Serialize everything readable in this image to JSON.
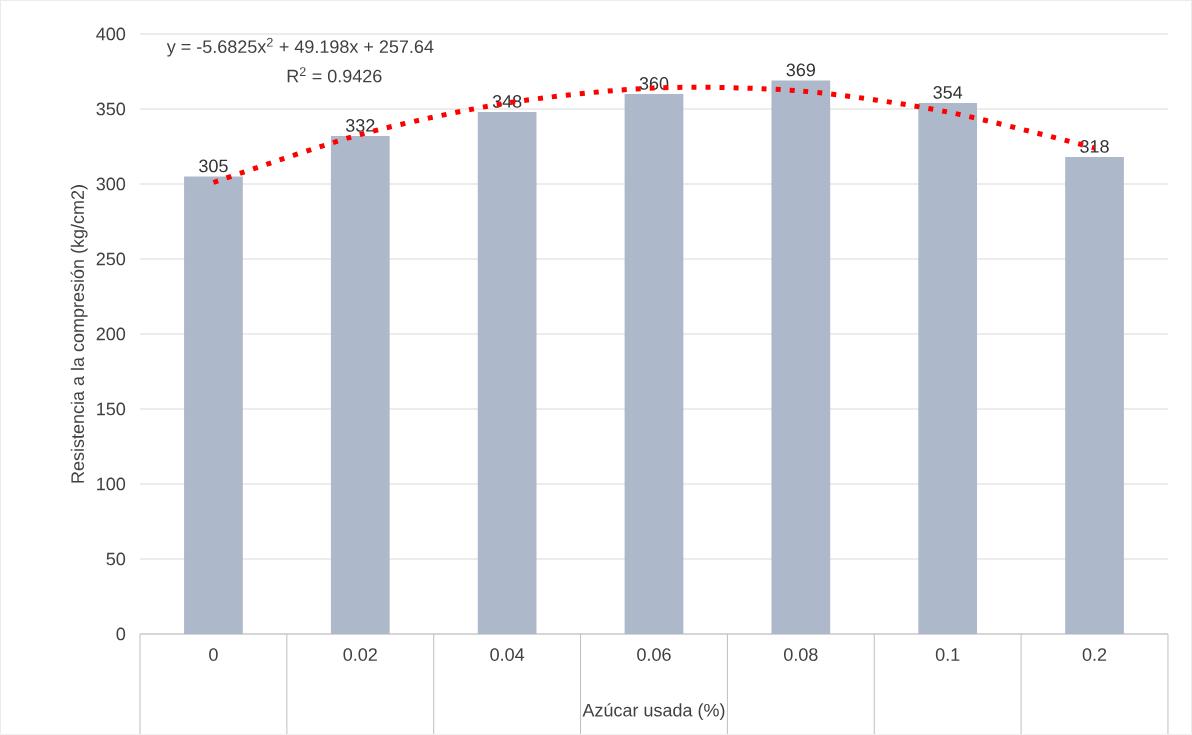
{
  "chart_data": {
    "type": "bar",
    "xlabel": "Azúcar usada (%)",
    "ylabel": "Resistencia a la compresión (kg/cm2)",
    "categories": [
      "0",
      "0.02",
      "0.04",
      "0.06",
      "0.08",
      "0.1",
      "0.2"
    ],
    "series": [
      {
        "color": "#adb9ca",
        "values": [
          305,
          332,
          348,
          360,
          369,
          354,
          318
        ],
        "value_labels": [
          "305",
          "332",
          "348",
          "360",
          "369",
          "354",
          "318"
        ]
      },
      {
        "type": "line",
        "color": "#ff0000",
        "line_style": "dotted",
        "marker": "none",
        "values": [
          301,
          333,
          354,
          364,
          362,
          348,
          324
        ]
      }
    ],
    "ylim": [
      0,
      400
    ],
    "yticks": [
      0,
      50,
      100,
      150,
      200,
      250,
      300,
      350,
      400
    ],
    "grid": "y",
    "annotations": [
      "y = -5.6825x$^{2}$ + 49.198x + 257.64",
      "R$^{2}$ = 0.9426"
    ]
  }
}
